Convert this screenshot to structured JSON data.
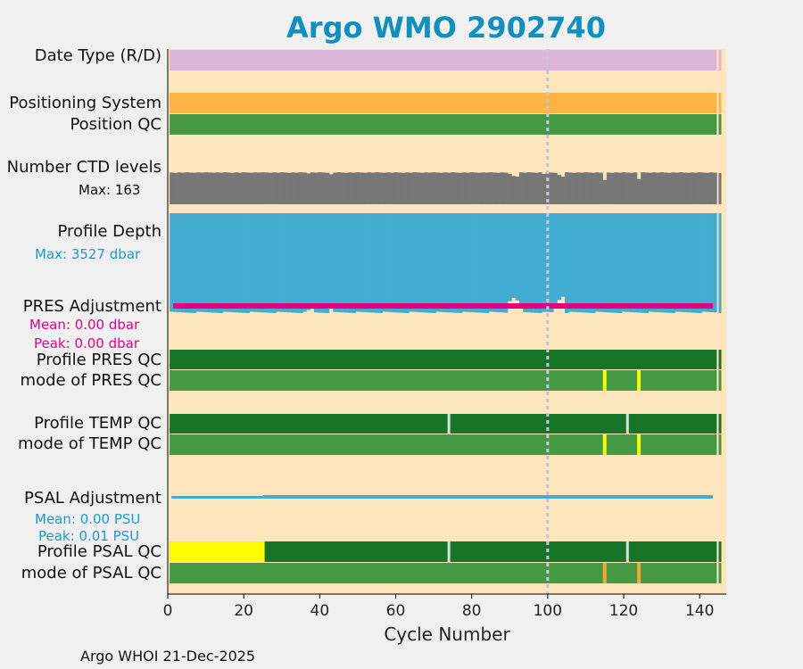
{
  "title": "Argo WMO 2902740",
  "footer": "Argo WHOI 21-Dec-2025",
  "colors": {
    "background": "#fde6bd",
    "date_type": "#dcb6d8",
    "positioning": "#fdb443",
    "good_light": "#459945",
    "good_dark": "#177428",
    "ctd": "#777777",
    "depth": "#42acd1",
    "pres_adj": "#e4007f",
    "flag_yellow": "#fffb00",
    "flag_orange": "#f4a83a",
    "title": "#1190c0"
  },
  "rows": {
    "date_type": "Date Type (R/D)",
    "positioning": "Positioning System",
    "position_qc": "Position QC",
    "ctd_levels": "Number CTD levels",
    "ctd_max": "Max: 163",
    "profile_depth": "Profile Depth",
    "depth_max": "Max: 3527 dbar",
    "pres_adj": "PRES Adjustment",
    "pres_mean": "Mean: 0.00 dbar",
    "pres_peak": "Peak: 0.00 dbar",
    "profile_pres_qc": "Profile PRES QC",
    "mode_pres_qc": "mode of PRES QC",
    "profile_temp_qc": "Profile TEMP QC",
    "mode_temp_qc": "mode of TEMP QC",
    "psal_adj": "PSAL Adjustment",
    "psal_mean": "Mean: 0.00 PSU",
    "psal_peak": "Peak: 0.01 PSU",
    "profile_psal_qc": "Profile PSAL QC",
    "mode_psal_qc": "mode of PSAL QC"
  },
  "chart_data": {
    "type": "bar",
    "xlabel": "Cycle Number",
    "xlim": [
      0,
      147
    ],
    "xticks": [
      0,
      20,
      40,
      60,
      80,
      100,
      120,
      140
    ],
    "reference_line_x": 100,
    "n_cycles": 144,
    "ctd_levels": {
      "max": 163,
      "typical": 158,
      "dips": [
        [
          37,
          152
        ],
        [
          43,
          148
        ],
        [
          90,
          150
        ],
        [
          91,
          140
        ],
        [
          92,
          136
        ],
        [
          99,
          150
        ],
        [
          103,
          145
        ],
        [
          104,
          136
        ],
        [
          115,
          120
        ],
        [
          124,
          125
        ]
      ]
    },
    "profile_depth": {
      "max_dbar": 3527,
      "typical_dbar": 3527,
      "shallow_cycles": [
        [
          37,
          3420
        ],
        [
          38,
          3380
        ],
        [
          43,
          3220
        ],
        [
          90,
          3110
        ],
        [
          91,
          2990
        ],
        [
          92,
          3080
        ],
        [
          93,
          3220
        ],
        [
          102,
          3200
        ],
        [
          103,
          3060
        ],
        [
          104,
          2950
        ]
      ]
    },
    "pres_adjustment": {
      "mean_dbar": 0.0,
      "peak_dbar": 0.0
    },
    "psal_adjustment": {
      "mean_psu": 0.0,
      "peak_psu": 0.01
    },
    "profile_temp_qc_breaks": [
      74,
      121
    ],
    "mode_qc_flags": [
      115,
      124
    ],
    "profile_psal_qc_bad_range": [
      1,
      25
    ]
  }
}
